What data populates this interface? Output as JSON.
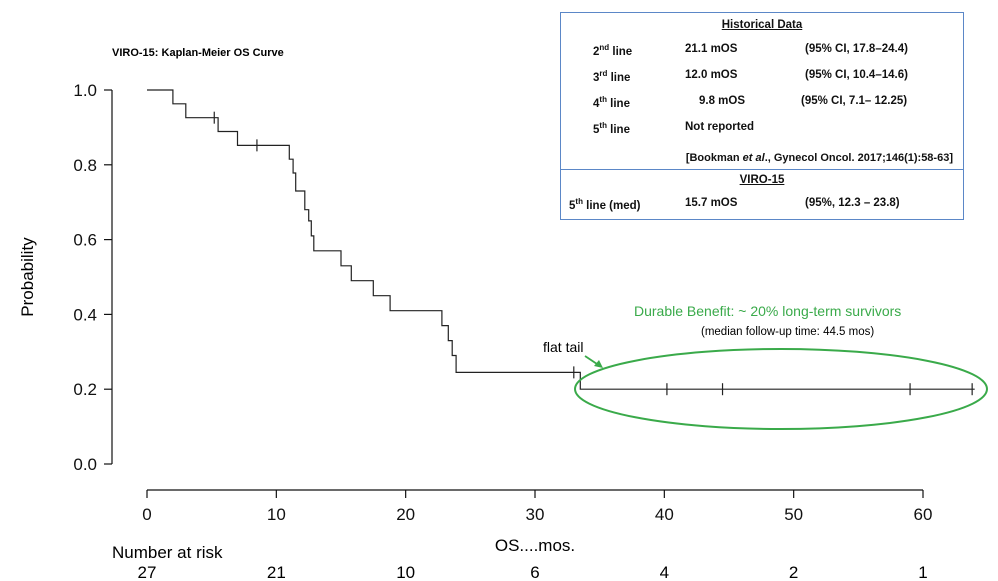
{
  "chart_data": {
    "type": "line",
    "title": "VIRO-15: Kaplan-Meier OS Curve",
    "xlabel": "OS....mos.",
    "ylabel": "Probability",
    "xlim": [
      0,
      65
    ],
    "ylim": [
      0,
      1.0
    ],
    "x_ticks": [
      "0",
      "10",
      "20",
      "30",
      "40",
      "50",
      "60"
    ],
    "x_tick_values": [
      0,
      10,
      20,
      30,
      40,
      50,
      60
    ],
    "y_ticks": [
      "0.0",
      "0.2",
      "0.4",
      "0.6",
      "0.8",
      "1.0"
    ],
    "y_tick_values": [
      0,
      0.2,
      0.4,
      0.6,
      0.8,
      1.0
    ],
    "series": [
      {
        "steps": [
          [
            0,
            1.0
          ],
          [
            2.0,
            1.0
          ],
          [
            2.0,
            0.963
          ],
          [
            3.0,
            0.963
          ],
          [
            3.0,
            0.926
          ],
          [
            5.5,
            0.926
          ],
          [
            5.5,
            0.889
          ],
          [
            7.0,
            0.889
          ],
          [
            7.0,
            0.852
          ],
          [
            11.0,
            0.852
          ],
          [
            11.0,
            0.815
          ],
          [
            11.3,
            0.815
          ],
          [
            11.3,
            0.778
          ],
          [
            11.5,
            0.778
          ],
          [
            11.5,
            0.73
          ],
          [
            12.2,
            0.73
          ],
          [
            12.2,
            0.68
          ],
          [
            12.5,
            0.68
          ],
          [
            12.5,
            0.65
          ],
          [
            12.7,
            0.65
          ],
          [
            12.7,
            0.61
          ],
          [
            12.9,
            0.61
          ],
          [
            12.9,
            0.57
          ],
          [
            15.0,
            0.57
          ],
          [
            15.0,
            0.53
          ],
          [
            15.8,
            0.53
          ],
          [
            15.8,
            0.49
          ],
          [
            17.5,
            0.49
          ],
          [
            17.5,
            0.45
          ],
          [
            18.8,
            0.45
          ],
          [
            18.8,
            0.41
          ],
          [
            22.8,
            0.41
          ],
          [
            22.8,
            0.37
          ],
          [
            23.3,
            0.37
          ],
          [
            23.3,
            0.33
          ],
          [
            23.6,
            0.33
          ],
          [
            23.6,
            0.29
          ],
          [
            23.9,
            0.29
          ],
          [
            23.9,
            0.245
          ],
          [
            33.5,
            0.245
          ],
          [
            33.5,
            0.2
          ],
          [
            64.0,
            0.2
          ]
        ],
        "censored": [
          [
            5.2,
            0.926
          ],
          [
            8.5,
            0.852
          ],
          [
            33.0,
            0.245
          ],
          [
            40.2,
            0.2
          ],
          [
            44.5,
            0.2
          ],
          [
            59.0,
            0.2
          ],
          [
            63.8,
            0.2
          ]
        ]
      }
    ],
    "risk_table": {
      "label": "Number at risk",
      "values": [
        "27",
        "21",
        "10",
        "6",
        "4",
        "2",
        "1"
      ]
    }
  },
  "annotations": {
    "flat_tail": "flat tail",
    "durable": "Durable Benefit: ~ 20% long-term survivors",
    "followup": "(median follow-up time: 44.5 mos)",
    "ellipse_color": "#3aaa4a",
    "durable_color": "#3aaa4a"
  },
  "historical_box": {
    "title": "Historical Data",
    "rows": [
      {
        "line": "2",
        "sup": "nd",
        "suffix": " line",
        "mos": "21.1 mOS",
        "ci": "(95% CI, 17.8–24.4)"
      },
      {
        "line": "3",
        "sup": "rd",
        "suffix": " line",
        "mos": "12.0 mOS",
        "ci": "(95% CI, 10.4–14.6)"
      },
      {
        "line": "4",
        "sup": "th",
        "suffix": " line",
        "mos": "9.8 mOS",
        "ci": "(95% CI, 7.1– 12.25)"
      },
      {
        "line": "5",
        "sup": "th",
        "suffix": " line",
        "mos": "Not reported",
        "ci": ""
      }
    ],
    "reference_prefix": "[Bookman ",
    "reference_etal": "et al",
    "reference_suffix": "., Gynecol Oncol. 2017;146(1):58-63]",
    "viro_title": "VIRO-15",
    "viro_row": {
      "line": "5",
      "sup": "th",
      "suffix": " line (med)",
      "mos": "15.7 mOS",
      "ci": "(95%, 12.3 – 23.8)"
    }
  }
}
